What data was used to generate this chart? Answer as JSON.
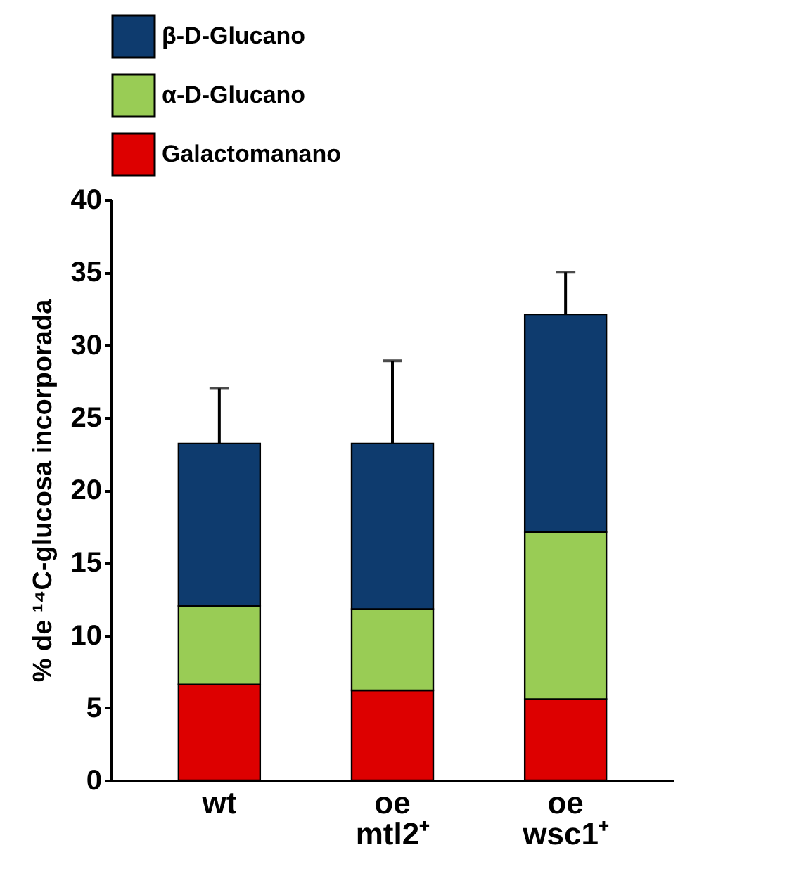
{
  "chart_data": {
    "type": "bar",
    "ylabel": "% de ¹⁴C-glucosa incorporada",
    "categories": [
      "wt",
      "oe\nmtl2⁺",
      "oe\nwsc1⁺"
    ],
    "stacked": true,
    "series": [
      {
        "name": "Galactomanano",
        "color": "#dd0000",
        "values": [
          6.6,
          6.2,
          5.6
        ]
      },
      {
        "name": "α-D-Glucano",
        "color": "#99cc55",
        "values": [
          5.4,
          5.6,
          11.5
        ]
      },
      {
        "name": "β-D-Glucano",
        "color": "#0e3b6e",
        "values": [
          11.2,
          11.4,
          15.0
        ],
        "errors": [
          [
            23.2,
            27.0
          ],
          [
            23.2,
            28.9
          ],
          [
            32.1,
            35.0
          ]
        ]
      }
    ],
    "ylim": [
      0,
      40
    ],
    "yticks": [
      0,
      5,
      10,
      15,
      20,
      25,
      30,
      35,
      40
    ],
    "grid": false,
    "legend": "top"
  }
}
